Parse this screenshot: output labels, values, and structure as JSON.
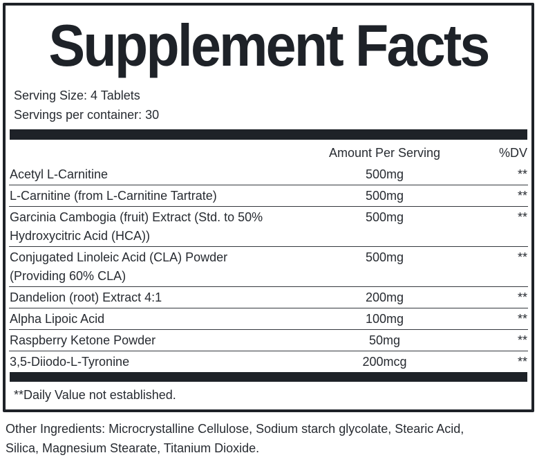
{
  "panel": {
    "title": "Supplement Facts",
    "serving_size": "Serving Size: 4 Tablets",
    "servings_per_container": "Servings per container: 30",
    "header": {
      "amount": "Amount Per Serving",
      "dv": "%DV"
    },
    "rows": [
      {
        "name": "Acetyl L-Carnitine",
        "amount": "500mg",
        "dv": "**"
      },
      {
        "name": "L-Carnitine (from L-Carnitine Tartrate)",
        "amount": "500mg",
        "dv": "**"
      },
      {
        "name": "Garcinia Cambogia (fruit) Extract (Std. to 50%\nHydroxycitric Acid (HCA))",
        "amount": "500mg",
        "dv": "**"
      },
      {
        "name": "Conjugated Linoleic Acid (CLA) Powder\n(Providing 60% CLA)",
        "amount": "500mg",
        "dv": "**"
      },
      {
        "name": "Dandelion (root) Extract 4:1",
        "amount": "200mg",
        "dv": "**"
      },
      {
        "name": "Alpha Lipoic Acid",
        "amount": "100mg",
        "dv": "**"
      },
      {
        "name": "Raspberry Ketone Powder",
        "amount": "50mg",
        "dv": "**"
      },
      {
        "name": "3,5-Diiodo-L-Tyronine",
        "amount": "200mcg",
        "dv": "**"
      }
    ],
    "footnote": "**Daily Value not established."
  },
  "other_ingredients": "Other Ingredients: Microcrystalline Cellulose, Sodium starch glycolate, Stearic Acid,\nSilica, Magnesium Stearate, Titanium Dioxide.",
  "colors": {
    "ink": "#272b31",
    "heavy": "#1e2228",
    "rule": "#33373d",
    "background": "#ffffff"
  }
}
